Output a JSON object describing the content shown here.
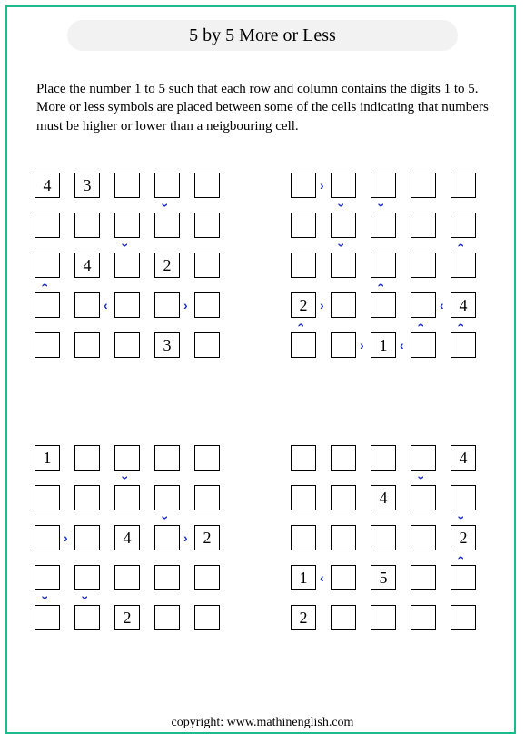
{
  "title": "5 by 5 More or Less",
  "instructions": "Place the number 1 to 5 such that each row and column contains the digits 1 to 5. More or less symbols are placed between some of the cells indicating that numbers must be higher or lower than a neigbouring cell.",
  "copyright": "copyright:    www.mathinenglish.com",
  "layout": {
    "cell_size": 28,
    "cell_pitch": 44,
    "grid_n": 5,
    "colors": {
      "border": "#1abc8c",
      "symbol": "#2030c0",
      "cell_border": "#000000",
      "title_bg": "#f2f2f2"
    }
  },
  "puzzles": [
    {
      "givens": [
        {
          "r": 0,
          "c": 0,
          "v": "4"
        },
        {
          "r": 0,
          "c": 1,
          "v": "3"
        },
        {
          "r": 2,
          "c": 1,
          "v": "4"
        },
        {
          "r": 2,
          "c": 3,
          "v": "2"
        },
        {
          "r": 4,
          "c": 3,
          "v": "3"
        }
      ],
      "h_syms": [
        {
          "r": 3,
          "c": 1,
          "s": "<"
        },
        {
          "r": 3,
          "c": 3,
          "s": ">"
        }
      ],
      "v_syms": [
        {
          "r": 0,
          "c": 3,
          "s": "v"
        },
        {
          "r": 1,
          "c": 2,
          "s": "v"
        },
        {
          "r": 2,
          "c": 0,
          "s": "^"
        }
      ]
    },
    {
      "givens": [
        {
          "r": 3,
          "c": 0,
          "v": "2"
        },
        {
          "r": 3,
          "c": 4,
          "v": "4"
        },
        {
          "r": 4,
          "c": 2,
          "v": "1"
        }
      ],
      "h_syms": [
        {
          "r": 0,
          "c": 0,
          "s": ">"
        },
        {
          "r": 3,
          "c": 0,
          "s": ">"
        },
        {
          "r": 3,
          "c": 3,
          "s": "<"
        },
        {
          "r": 4,
          "c": 1,
          "s": ">"
        },
        {
          "r": 4,
          "c": 2,
          "s": "<"
        }
      ],
      "v_syms": [
        {
          "r": 0,
          "c": 1,
          "s": "v"
        },
        {
          "r": 0,
          "c": 2,
          "s": "v"
        },
        {
          "r": 1,
          "c": 1,
          "s": "v"
        },
        {
          "r": 1,
          "c": 4,
          "s": "^"
        },
        {
          "r": 2,
          "c": 2,
          "s": "^"
        },
        {
          "r": 3,
          "c": 0,
          "s": "^"
        },
        {
          "r": 3,
          "c": 3,
          "s": "^"
        },
        {
          "r": 3,
          "c": 4,
          "s": "^"
        }
      ]
    },
    {
      "givens": [
        {
          "r": 0,
          "c": 0,
          "v": "1"
        },
        {
          "r": 2,
          "c": 2,
          "v": "4"
        },
        {
          "r": 2,
          "c": 4,
          "v": "2"
        },
        {
          "r": 4,
          "c": 2,
          "v": "2"
        }
      ],
      "h_syms": [
        {
          "r": 2,
          "c": 0,
          "s": ">"
        },
        {
          "r": 2,
          "c": 3,
          "s": ">"
        }
      ],
      "v_syms": [
        {
          "r": 0,
          "c": 2,
          "s": "v"
        },
        {
          "r": 1,
          "c": 3,
          "s": "v"
        },
        {
          "r": 3,
          "c": 0,
          "s": "v"
        },
        {
          "r": 3,
          "c": 1,
          "s": "v"
        }
      ]
    },
    {
      "givens": [
        {
          "r": 0,
          "c": 4,
          "v": "4"
        },
        {
          "r": 1,
          "c": 2,
          "v": "4"
        },
        {
          "r": 2,
          "c": 4,
          "v": "2"
        },
        {
          "r": 3,
          "c": 0,
          "v": "1"
        },
        {
          "r": 3,
          "c": 2,
          "v": "5"
        },
        {
          "r": 4,
          "c": 0,
          "v": "2"
        }
      ],
      "h_syms": [
        {
          "r": 3,
          "c": 0,
          "s": "<"
        }
      ],
      "v_syms": [
        {
          "r": 0,
          "c": 3,
          "s": "v"
        },
        {
          "r": 1,
          "c": 4,
          "s": "v"
        },
        {
          "r": 2,
          "c": 4,
          "s": "^"
        }
      ]
    }
  ]
}
